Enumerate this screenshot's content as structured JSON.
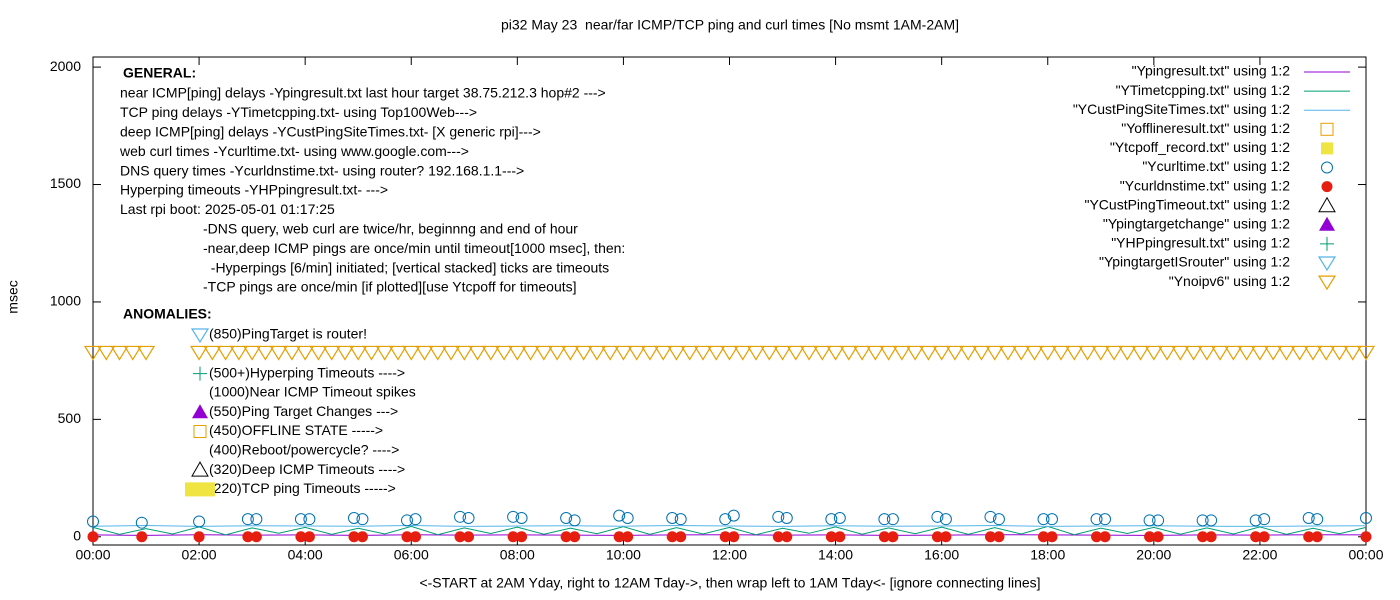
{
  "chart_data": {
    "type": "line",
    "title": "pi32 May 23  near/far ICMP/TCP ping and curl times [No msmt 1AM-2AM]",
    "y_label": "msec",
    "x_label": "<-START at 2AM Yday, right to 12AM Tday->, then wrap left to 1AM Tday<- [ignore connecting lines]",
    "xlim": [
      0,
      24
    ],
    "ylim": [
      -35,
      2043
    ],
    "yticks": [
      0,
      500,
      1000,
      1500,
      2000
    ],
    "xticks": [
      {
        "value": 0,
        "label": "00:00"
      },
      {
        "value": 2,
        "label": "02:00"
      },
      {
        "value": 4,
        "label": "04:00"
      },
      {
        "value": 6,
        "label": "06:00"
      },
      {
        "value": 8,
        "label": "08:00"
      },
      {
        "value": 10,
        "label": "10:00"
      },
      {
        "value": 12,
        "label": "12:00"
      },
      {
        "value": 14,
        "label": "14:00"
      },
      {
        "value": 16,
        "label": "16:00"
      },
      {
        "value": 18,
        "label": "18:00"
      },
      {
        "value": 20,
        "label": "20:00"
      },
      {
        "value": 22,
        "label": "22:00"
      },
      {
        "value": 24,
        "label": "00:00"
      }
    ],
    "grid": false,
    "legend_position": "top-right",
    "general_title": "GENERAL:",
    "general_notes": [
      "near ICMP[ping] delays -Ypingresult.txt last hour target 38.75.212.3 hop#2 --->",
      "TCP ping delays -YTimetcpping.txt- using Top100Web--->",
      "deep ICMP[ping] delays -YCustPingSiteTimes.txt- [X generic rpi]--->",
      "web curl times -Ycurltime.txt- using www.google.com--->",
      "DNS query times -Ycurldnstime.txt- using router? 192.168.1.1--->",
      "Hyperping timeouts -YHPpingresult.txt- --->",
      "Last rpi boot: 2025-05-01 01:17:25",
      "-DNS query, web curl are twice/hr, beginnng and end of hour",
      "-near,deep ICMP pings are once/min until timeout[1000 msec], then:",
      "  -Hyperpings [6/min] initiated; [vertical stacked] ticks are timeouts",
      "-TCP pings are once/min [if plotted][use Ytcpoff for timeouts]"
    ],
    "anomalies_title": "ANOMALIES:",
    "anomalies": [
      {
        "text": "(850)PingTarget is router!",
        "marker": "triangle-down-open",
        "color": "#56b4e9"
      },
      {
        "text": "(500+)Hyperping Timeouts ---->",
        "marker": "plus",
        "color": "#009e73"
      },
      {
        "text": "(1000)Near ICMP Timeout spikes"
      },
      {
        "text": "(550)Ping Target Changes --->",
        "marker": "triangle-filled",
        "color": "#9400d3"
      },
      {
        "text": "(450)OFFLINE STATE ----->",
        "marker": "square-open",
        "color": "#e69f00"
      },
      {
        "text": "(400)Reboot/powercycle? ---->"
      },
      {
        "text": "(320)Deep ICMP Timeouts ---->",
        "marker": "triangle-open",
        "color": "#000000"
      },
      {
        "text": "(220)TCP ping Timeouts ----->",
        "marker": "rect-filled",
        "color": "#f0e442"
      }
    ],
    "series": [
      {
        "name": "\"Ypingresult.txt\" using 1:2",
        "color": "#9400d3",
        "style": "line",
        "x": [
          0,
          1,
          2,
          3,
          4,
          5,
          6,
          7,
          8,
          9,
          10,
          11,
          12,
          13,
          14,
          15,
          16,
          17,
          18,
          19,
          20,
          21,
          22,
          23,
          24
        ],
        "values": [
          8,
          6,
          9,
          7,
          8,
          6,
          9,
          7,
          8,
          7,
          6,
          8,
          9,
          7,
          8,
          6,
          7,
          9,
          8,
          7,
          6,
          8,
          7,
          9,
          8
        ]
      },
      {
        "name": "\"YTimetcpping.txt\" using 1:2",
        "color": "#009e73",
        "style": "line",
        "x": [
          0,
          0.5,
          1,
          1.5,
          2,
          2.5,
          3,
          3.5,
          4,
          4.5,
          5,
          5.5,
          6,
          6.5,
          7,
          7.5,
          8,
          8.5,
          9,
          9.5,
          10,
          10.5,
          11,
          11.5,
          12,
          12.5,
          13,
          13.5,
          14,
          14.5,
          15,
          15.5,
          16,
          16.5,
          17,
          17.5,
          18,
          18.5,
          19,
          19.5,
          20,
          20.5,
          21,
          21.5,
          22,
          22.5,
          23,
          23.5,
          24
        ],
        "values": [
          40,
          10,
          35,
          12,
          42,
          8,
          38,
          15,
          40,
          10,
          36,
          12,
          44,
          9,
          38,
          14,
          41,
          11,
          37,
          13,
          43,
          10,
          39,
          12,
          40,
          9,
          36,
          15,
          42,
          11,
          38,
          13,
          41,
          10,
          39,
          12,
          44,
          9,
          37,
          14,
          40,
          11,
          38,
          12,
          42,
          10,
          36,
          13,
          40
        ]
      },
      {
        "name": "\"YCustPingSiteTimes.txt\" using 1:2",
        "color": "#56b4e9",
        "style": "line",
        "x": [
          0,
          1,
          2,
          3,
          4,
          5,
          6,
          7,
          8,
          9,
          10,
          11,
          12,
          13,
          14,
          15,
          16,
          17,
          18,
          19,
          20,
          21,
          22,
          23,
          24
        ],
        "values": [
          45,
          48,
          44,
          47,
          46,
          45,
          48,
          44,
          46,
          47,
          45,
          48,
          46,
          44,
          47,
          45,
          46,
          48,
          44,
          46,
          47,
          45,
          44,
          46,
          47
        ]
      },
      {
        "name": "\"Yofflineresult.txt\" using 1:2",
        "color": "#e69f00",
        "style": "square-open",
        "x": [],
        "values": []
      },
      {
        "name": "\"Ytcpoff_record.txt\" using 1:2",
        "color": "#f0e442",
        "style": "square-filled",
        "x": [],
        "values": []
      },
      {
        "name": "\"Ycurltime.txt\" using 1:2",
        "color": "#0072b2",
        "style": "circle-open",
        "x": [
          0,
          0.92,
          2,
          2.92,
          3.08,
          3.92,
          4.08,
          4.92,
          5.08,
          5.92,
          6.08,
          6.92,
          7.08,
          7.92,
          8.08,
          8.92,
          9.08,
          9.92,
          10.08,
          10.92,
          11.08,
          11.92,
          12.08,
          12.92,
          13.08,
          13.92,
          14.08,
          14.92,
          15.08,
          15.92,
          16.08,
          16.92,
          17.08,
          17.92,
          18.08,
          18.92,
          19.08,
          19.92,
          20.08,
          20.92,
          21.08,
          21.92,
          22.08,
          22.92,
          23.08,
          24
        ],
        "values": [
          65,
          60,
          65,
          75,
          75,
          75,
          75,
          80,
          75,
          70,
          75,
          85,
          80,
          85,
          80,
          80,
          70,
          90,
          80,
          80,
          75,
          75,
          90,
          85,
          80,
          75,
          80,
          75,
          75,
          85,
          75,
          85,
          75,
          75,
          75,
          75,
          75,
          70,
          70,
          70,
          70,
          70,
          75,
          80,
          75,
          80
        ]
      },
      {
        "name": "\"Ycurldnstime.txt\" using 1:2",
        "color": "#e51e10",
        "style": "circle-filled",
        "x": [
          0,
          0.92,
          2,
          2.92,
          3.08,
          3.92,
          4.08,
          4.92,
          5.08,
          5.92,
          6.08,
          6.92,
          7.08,
          7.92,
          8.08,
          8.92,
          9.08,
          9.92,
          10.08,
          10.92,
          11.08,
          11.92,
          12.08,
          12.92,
          13.08,
          13.92,
          14.08,
          14.92,
          15.08,
          15.92,
          16.08,
          16.92,
          17.08,
          17.92,
          18.08,
          18.92,
          19.08,
          19.92,
          20.08,
          20.92,
          21.08,
          21.92,
          22.08,
          22.92,
          23.08,
          24
        ],
        "values": [
          0,
          0,
          0,
          0,
          0,
          0,
          0,
          0,
          0,
          0,
          0,
          0,
          0,
          0,
          0,
          0,
          0,
          0,
          0,
          0,
          0,
          0,
          0,
          0,
          0,
          0,
          0,
          0,
          0,
          0,
          0,
          0,
          0,
          0,
          0,
          0,
          0,
          0,
          0,
          0,
          0,
          0,
          0,
          0,
          0,
          0
        ]
      },
      {
        "name": "\"YCustPingTimeout.txt\" using 1:2",
        "color": "#000000",
        "style": "triangle-open",
        "x": [],
        "values": []
      },
      {
        "name": "\"Ypingtargetchange\" using 1:2",
        "color": "#9400d3",
        "style": "triangle-filled",
        "x": [],
        "values": []
      },
      {
        "name": "\"YHPpingresult.txt\" using 1:2",
        "color": "#009e73",
        "style": "plus",
        "x": [],
        "values": []
      },
      {
        "name": "\"YpingtargetISrouter\" using 1:2",
        "color": "#56b4e9",
        "style": "triangle-down-open",
        "x": [],
        "values": []
      },
      {
        "name": "\"Ynoipv6\" using 1:2",
        "color": "#e69f00",
        "style": "triangle-down-open",
        "x": [
          0,
          0.25,
          0.5,
          0.75,
          1,
          2,
          2.25,
          2.5,
          2.75,
          3,
          3.25,
          3.5,
          3.75,
          4,
          4.25,
          4.5,
          4.75,
          5,
          5.25,
          5.5,
          5.75,
          6,
          6.25,
          6.5,
          6.75,
          7,
          7.25,
          7.5,
          7.75,
          8,
          8.25,
          8.5,
          8.75,
          9,
          9.25,
          9.5,
          9.75,
          10,
          10.25,
          10.5,
          10.75,
          11,
          11.25,
          11.5,
          11.75,
          12,
          12.25,
          12.5,
          12.75,
          13,
          13.25,
          13.5,
          13.75,
          14,
          14.25,
          14.5,
          14.75,
          15,
          15.25,
          15.5,
          15.75,
          16,
          16.25,
          16.5,
          16.75,
          17,
          17.25,
          17.5,
          17.75,
          18,
          18.25,
          18.5,
          18.75,
          19,
          19.25,
          19.5,
          19.75,
          20,
          20.25,
          20.5,
          20.75,
          21,
          21.25,
          21.5,
          21.75,
          22,
          22.25,
          22.5,
          22.75,
          23,
          23.25,
          23.5,
          23.75,
          24
        ],
        "values": [
          785,
          785,
          785,
          785,
          785,
          785,
          785,
          785,
          785,
          785,
          785,
          785,
          785,
          785,
          785,
          785,
          785,
          785,
          785,
          785,
          785,
          785,
          785,
          785,
          785,
          785,
          785,
          785,
          785,
          785,
          785,
          785,
          785,
          785,
          785,
          785,
          785,
          785,
          785,
          785,
          785,
          785,
          785,
          785,
          785,
          785,
          785,
          785,
          785,
          785,
          785,
          785,
          785,
          785,
          785,
          785,
          785,
          785,
          785,
          785,
          785,
          785,
          785,
          785,
          785,
          785,
          785,
          785,
          785,
          785,
          785,
          785,
          785,
          785,
          785,
          785,
          785,
          785,
          785,
          785,
          785,
          785,
          785,
          785,
          785,
          785,
          785,
          785,
          785,
          785,
          785,
          785,
          785,
          785
        ]
      }
    ]
  }
}
